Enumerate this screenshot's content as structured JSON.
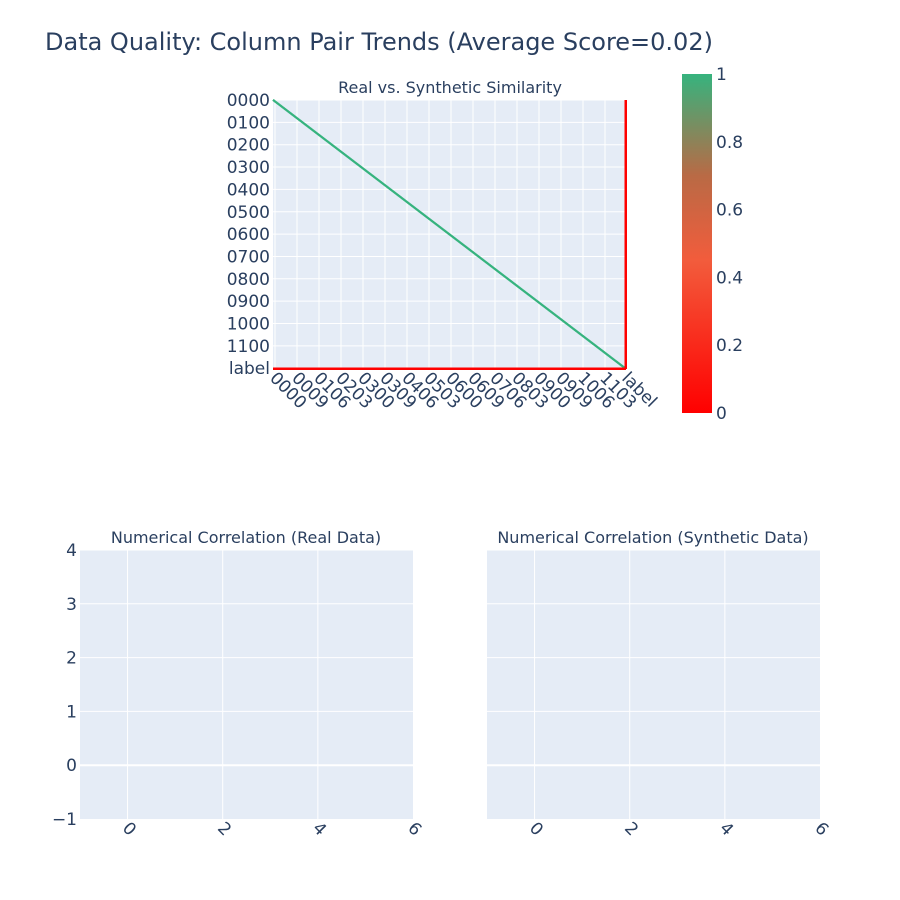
{
  "title": "Data Quality: Column Pair Trends (Average Score=0.02)",
  "colors": {
    "plot_bg": "#e5ecf6",
    "grid": "#ffffff",
    "text": "#2a3f5f",
    "colorscale_low": "#ff0000",
    "colorscale_mid": "#f25c3c",
    "colorscale_high": "#36b37e"
  },
  "chart_data": [
    {
      "type": "heatmap",
      "title": "Real vs. Synthetic Similarity",
      "n_columns": 1201,
      "y_tick_labels": [
        "0000",
        "0100",
        "0200",
        "0300",
        "0400",
        "0500",
        "0600",
        "0700",
        "0800",
        "0900",
        "1000",
        "1100",
        "label"
      ],
      "x_tick_labels": [
        "0000",
        "0009",
        "0106",
        "0203",
        "0300",
        "0309",
        "0406",
        "0503",
        "0600",
        "0609",
        "0706",
        "0803",
        "0900",
        "0909",
        "1006",
        "1103",
        "label"
      ],
      "pattern": "diagonal cells = 1, label row and label column = 0, all other pairs empty",
      "colorbar": {
        "range": [
          0,
          1
        ],
        "ticks": [
          "0",
          "0.2",
          "0.4",
          "0.6",
          "0.8",
          "1"
        ]
      }
    },
    {
      "type": "heatmap",
      "title": "Numerical Correlation (Real Data)",
      "xlim": [
        -1,
        6
      ],
      "ylim": [
        -1,
        4
      ],
      "x_ticks": [
        "0",
        "2",
        "4",
        "6"
      ],
      "y_ticks": [
        "4",
        "3",
        "2",
        "1",
        "0",
        "−1"
      ],
      "values": []
    },
    {
      "type": "heatmap",
      "title": "Numerical Correlation (Synthetic Data)",
      "xlim": [
        -1,
        6
      ],
      "ylim": [
        -1,
        4
      ],
      "x_ticks": [
        "0",
        "2",
        "4",
        "6"
      ],
      "values": []
    }
  ]
}
